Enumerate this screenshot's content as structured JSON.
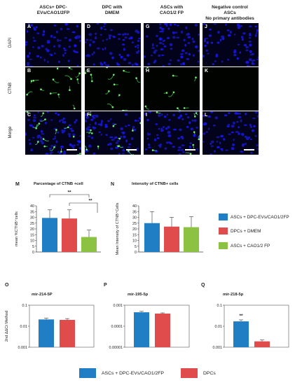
{
  "columns": [
    "ASCs+ DPC-\nEVs/CAO1/2FP",
    "DPC with\nDMEM",
    "ASCs with\nCAO1/2 FP",
    "Negative control\nASCs\nNo primary antibodies"
  ],
  "rows": [
    "DAPI",
    "CTNB",
    "Merge"
  ],
  "panel_letters": [
    [
      "A",
      "D",
      "G",
      "J"
    ],
    [
      "B",
      "E",
      "H",
      "K"
    ],
    [
      "C",
      "F",
      "I",
      "L"
    ]
  ],
  "colors": {
    "blue": "#1f7ec4",
    "red": "#e04b4b",
    "green": "#8cc241"
  },
  "legend_main": [
    "ASCs + DPC-EVs/CAO1/2FP",
    "DPCs + DMEM",
    "ASCs + CAO1/2 FP"
  ],
  "legend_bottom": [
    "ASCs + DPC-EVs/CAO1/2FP",
    "DPCs"
  ],
  "chart_data": [
    {
      "type": "bar",
      "panel": "M",
      "title": "Parcentage of CTNB +cell",
      "ylabel": "mean %CTNB⁺cells",
      "ylim": [
        0,
        40
      ],
      "yticks": [
        0,
        5,
        10,
        15,
        20,
        25,
        30,
        35,
        40
      ],
      "series": [
        {
          "name": "ASCs + DPC-EVs/CAO1/2FP",
          "value": 29.5,
          "error": 7
        },
        {
          "name": "DPCs + DMEM",
          "value": 29,
          "error": 7.5
        },
        {
          "name": "ASCs + CAO1/2 FP",
          "value": 13,
          "error": 6
        }
      ],
      "annotations": [
        "**",
        "**"
      ]
    },
    {
      "type": "bar",
      "panel": "N",
      "title": "Intensity of CTNB+ cells",
      "ylabel": "Mean Intensity of CTNB⁺Cells",
      "ylim": [
        0,
        40
      ],
      "yticks": [
        0,
        5,
        10,
        15,
        20,
        25,
        30,
        35,
        40
      ],
      "series": [
        {
          "name": "ASCs + DPC-EVs/CAO1/2FP",
          "value": 25,
          "error": 10
        },
        {
          "name": "DPCs + DMEM",
          "value": 22,
          "error": 8
        },
        {
          "name": "ASCs + CAO1/2 FP",
          "value": 21.5,
          "error": 9
        }
      ]
    },
    {
      "type": "bar",
      "panel": "O",
      "title": "mir-214-5P",
      "ylabel": "2nd ΔΔCt Method",
      "scale": "log",
      "ylim": [
        0.001,
        0.1
      ],
      "yticks": [
        "0.001",
        "0.01",
        "0.1"
      ],
      "series": [
        {
          "name": "ASCs + DPC-EVs/CAO1/2FP",
          "value": 0.021,
          "error": 0.003
        },
        {
          "name": "DPCs",
          "value": 0.02,
          "error": 0.003
        }
      ]
    },
    {
      "type": "bar",
      "panel": "P",
      "title": "mir-195-5p",
      "scale": "log",
      "ylim": [
        1e-05,
        0.001
      ],
      "yticks": [
        "0.00001",
        "0.0001",
        "0.001"
      ],
      "series": [
        {
          "name": "ASCs + DPC-EVs/CAO1/2FP",
          "value": 0.00046,
          "error": 5e-05
        },
        {
          "name": "DPCs",
          "value": 0.0004,
          "error": 3e-05
        }
      ]
    },
    {
      "type": "bar",
      "panel": "Q",
      "title": "mir-218-5p",
      "scale": "log",
      "ylim": [
        0.001,
        0.1
      ],
      "yticks": [
        "0.001",
        "0.01",
        "0.1"
      ],
      "series": [
        {
          "name": "ASCs + DPC-EVs/CAO1/2FP",
          "value": 0.017,
          "error": 0.003
        },
        {
          "name": "DPCs",
          "value": 0.0019,
          "error": 0.0003
        }
      ],
      "annotations": [
        "**"
      ]
    }
  ]
}
